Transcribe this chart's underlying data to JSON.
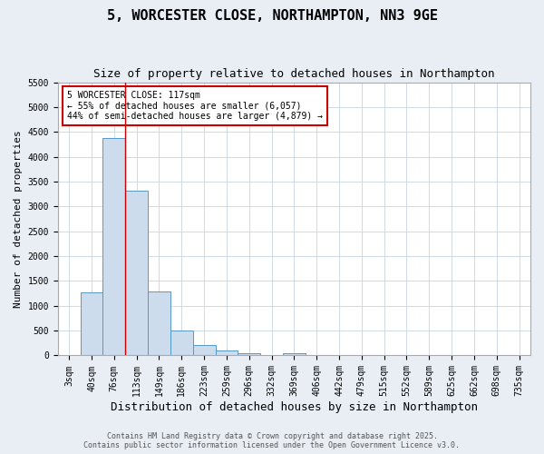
{
  "title": "5, WORCESTER CLOSE, NORTHAMPTON, NN3 9GE",
  "subtitle": "Size of property relative to detached houses in Northampton",
  "xlabel": "Distribution of detached houses by size in Northampton",
  "ylabel": "Number of detached properties",
  "bar_color": "#ccdcec",
  "bar_edge_color": "#5599cc",
  "categories": [
    "3sqm",
    "40sqm",
    "76sqm",
    "113sqm",
    "149sqm",
    "186sqm",
    "223sqm",
    "259sqm",
    "296sqm",
    "332sqm",
    "369sqm",
    "406sqm",
    "442sqm",
    "479sqm",
    "515sqm",
    "552sqm",
    "589sqm",
    "625sqm",
    "662sqm",
    "698sqm",
    "735sqm"
  ],
  "values": [
    0,
    1270,
    4370,
    3320,
    1290,
    505,
    210,
    95,
    50,
    5,
    40,
    0,
    0,
    0,
    0,
    0,
    0,
    0,
    0,
    0,
    0
  ],
  "ylim": [
    0,
    5500
  ],
  "yticks": [
    0,
    500,
    1000,
    1500,
    2000,
    2500,
    3000,
    3500,
    4000,
    4500,
    5000,
    5500
  ],
  "annotation_box_text": "5 WORCESTER CLOSE: 117sqm\n← 55% of detached houses are smaller (6,057)\n44% of semi-detached houses are larger (4,879) →",
  "annotation_box_color": "#cc0000",
  "vline_color": "#cc0000",
  "vline_x_index": 3,
  "footer_line1": "Contains HM Land Registry data © Crown copyright and database right 2025.",
  "footer_line2": "Contains public sector information licensed under the Open Government Licence v3.0.",
  "bg_color": "#e8eef4",
  "plot_bg_color": "#ffffff",
  "grid_color": "#c8d4e0",
  "title_fontsize": 11,
  "subtitle_fontsize": 9,
  "tick_fontsize": 7,
  "ylabel_fontsize": 8,
  "xlabel_fontsize": 9
}
